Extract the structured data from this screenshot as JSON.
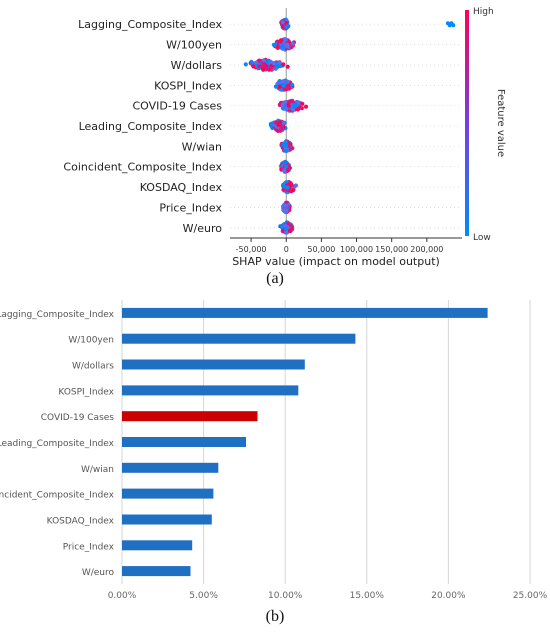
{
  "captions": {
    "a": "(a)",
    "b": "(b)"
  },
  "chart_data": [
    {
      "type": "scatter",
      "subtype": "shap-beeswarm",
      "features": [
        "Lagging_Composite_Index",
        "W/100yen",
        "W/dollars",
        "KOSPI_Index",
        "COVID-19 Cases",
        "Leading_Composite_Index",
        "W/wian",
        "Coincident_Composite_Index",
        "KOSDAQ_Index",
        "Price_Index",
        "W/euro"
      ],
      "xlabel": "SHAP value (impact on model output)",
      "ylabel": "",
      "xlim": [
        -80000,
        250000
      ],
      "xticks": [
        -50000,
        0,
        50000,
        100000,
        150000,
        200000
      ],
      "xtick_labels": [
        "-50,000",
        "0",
        "50,000",
        "100,000",
        "150,000",
        "200,000"
      ],
      "colorbar": {
        "label": "Feature value",
        "high": "High",
        "low": "Low",
        "high_color": "#ff0052",
        "low_color": "#008bfb"
      },
      "grid": false,
      "ranges": [
        {
          "feature": "Lagging_Composite_Index",
          "min": -8000,
          "max": 4000,
          "outlier": 230000
        },
        {
          "feature": "W/100yen",
          "min": -20000,
          "max": 15000
        },
        {
          "feature": "W/dollars",
          "min": -65000,
          "max": 10000
        },
        {
          "feature": "KOSPI_Index",
          "min": -20000,
          "max": 12000
        },
        {
          "feature": "COVID-19 Cases",
          "min": -15000,
          "max": 30000
        },
        {
          "feature": "Leading_Composite_Index",
          "min": -25000,
          "max": 4000
        },
        {
          "feature": "W/wian",
          "min": -10000,
          "max": 10000
        },
        {
          "feature": "Coincident_Composite_Index",
          "min": -10000,
          "max": 8000
        },
        {
          "feature": "KOSDAQ_Index",
          "min": -10000,
          "max": 15000
        },
        {
          "feature": "Price_Index",
          "min": -6000,
          "max": 6000
        },
        {
          "feature": "W/euro",
          "min": -10000,
          "max": 12000
        }
      ]
    },
    {
      "type": "bar",
      "orientation": "horizontal",
      "categories": [
        "Lagging_Composite_Index",
        "W/100yen",
        "W/dollars",
        "KOSPI_Index",
        "COVID-19 Cases",
        "Leading_Composite_Index",
        "W/wian",
        "Coincident_Composite_Index",
        "KOSDAQ_Index",
        "Price_Index",
        "W/euro"
      ],
      "values": [
        22.4,
        14.3,
        11.2,
        10.8,
        8.3,
        7.6,
        5.9,
        5.6,
        5.5,
        4.3,
        4.2
      ],
      "unit": "%",
      "xlim": [
        0,
        25
      ],
      "xticks": [
        0,
        5,
        10,
        15,
        20,
        25
      ],
      "xtick_labels": [
        "0.00%",
        "5.00%",
        "10.00%",
        "15.00%",
        "20.00%",
        "25.00%"
      ],
      "bar_color": "#1f6fc2",
      "highlight": {
        "category": "COVID-19 Cases",
        "color": "#cc0000"
      },
      "grid": true,
      "title": "",
      "xlabel": "",
      "ylabel": ""
    }
  ]
}
